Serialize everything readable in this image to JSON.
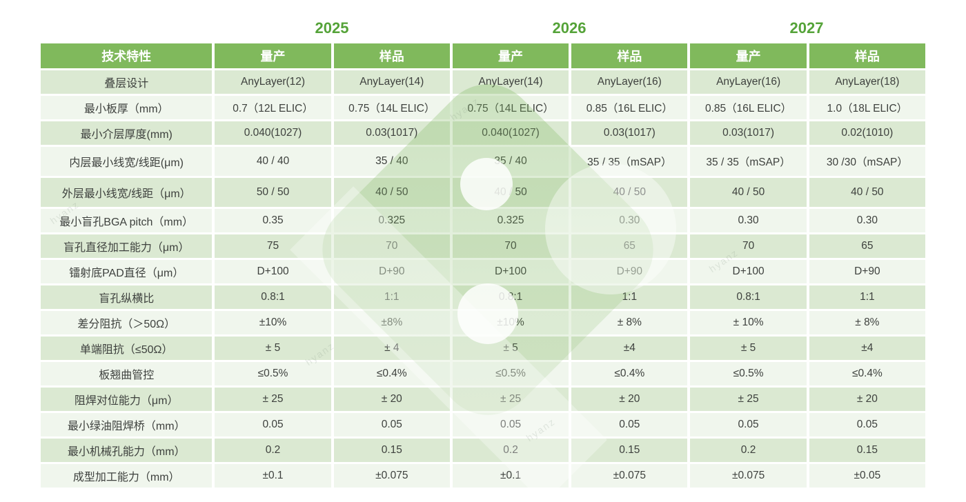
{
  "table": {
    "corner_header": "技术特性",
    "column_groups": [
      {
        "year": "2025",
        "columns": [
          "量产",
          "样品"
        ]
      },
      {
        "year": "2026",
        "columns": [
          "量产",
          "样品"
        ]
      },
      {
        "year": "2027",
        "columns": [
          "量产",
          "样品"
        ]
      }
    ],
    "rows": [
      {
        "label": "叠层设计",
        "values": [
          "AnyLayer(12)",
          "AnyLayer(14)",
          "AnyLayer(14)",
          "AnyLayer(16)",
          "AnyLayer(16)",
          "AnyLayer(18)"
        ]
      },
      {
        "label": "最小板厚（mm）",
        "values": [
          "0.7（12L ELIC）",
          "0.75（14L ELIC）",
          "0.75（14L ELIC）",
          "0.85（16L ELIC）",
          "0.85（16L ELIC）",
          "1.0（18L ELIC）"
        ]
      },
      {
        "label": "最小介层厚度(mm)",
        "values": [
          "0.040(1027)",
          "0.03(1017)",
          "0.040(1027)",
          "0.03(1017)",
          "0.03(1017)",
          "0.02(1010)"
        ]
      },
      {
        "label": "内层最小线宽/线距(μm)",
        "values": [
          "40 / 40",
          "35 / 40",
          "35 / 40",
          "35 / 35（mSAP）",
          "35 / 35（mSAP）",
          "30 /30（mSAP）"
        ]
      },
      {
        "label": "外层最小线宽/线距（μm）",
        "values": [
          "50 / 50",
          "40 / 50",
          "40 / 50",
          "40 / 50",
          "40 / 50",
          "40 / 50"
        ]
      },
      {
        "label": "最小盲孔BGA pitch（mm）",
        "values": [
          "0.35",
          "0.325",
          "0.325",
          "0.30",
          "0.30",
          "0.30"
        ]
      },
      {
        "label": "盲孔直径加工能力（μm）",
        "values": [
          "75",
          "70",
          "70",
          "65",
          "70",
          "65"
        ]
      },
      {
        "label": "镭射底PAD直径（μm）",
        "values": [
          "D+100",
          "D+90",
          "D+100",
          "D+90",
          "D+100",
          "D+90"
        ]
      },
      {
        "label": "盲孔纵横比",
        "values": [
          "0.8:1",
          "1:1",
          "0.8:1",
          "1:1",
          "0.8:1",
          "1:1"
        ]
      },
      {
        "label": "差分阻抗（＞50Ω）",
        "values": [
          "±10%",
          "±8%",
          "±10%",
          "± 8%",
          "± 10%",
          "± 8%"
        ]
      },
      {
        "label": "单端阻抗（≤50Ω）",
        "values": [
          "± 5",
          "± 4",
          "± 5",
          "±4",
          "± 5",
          "±4"
        ]
      },
      {
        "label": "板翘曲管控",
        "values": [
          "≤0.5%",
          "≤0.4%",
          "≤0.5%",
          "≤0.4%",
          "≤0.5%",
          "≤0.4%"
        ]
      },
      {
        "label": "阻焊对位能力（μm）",
        "values": [
          "± 25",
          "± 20",
          "± 25",
          "± 20",
          "± 25",
          "± 20"
        ]
      },
      {
        "label": "最小绿油阻焊桥（mm）",
        "values": [
          "0.05",
          "0.05",
          "0.05",
          "0.05",
          "0.05",
          "0.05"
        ]
      },
      {
        "label": "最小机械孔能力（mm）",
        "values": [
          "0.2",
          "0.15",
          "0.2",
          "0.15",
          "0.2",
          "0.15"
        ]
      },
      {
        "label": "成型加工能力（mm）",
        "values": [
          "±0.1",
          "±0.075",
          "±0.1",
          "±0.075",
          "±0.075",
          "±0.05"
        ]
      }
    ]
  },
  "watermark": {
    "logo": "rounded-diamond-with-two-dots",
    "text": "hyanz"
  },
  "colors": {
    "header_bg": "#80b95c",
    "header_text": "#ffffff",
    "year_text": "#55a339",
    "row_odd_bg": "#dbe9d2",
    "row_even_bg": "#f0f6ed",
    "cell_text": "#3d403d",
    "watermark_green": "#7eb75f"
  }
}
